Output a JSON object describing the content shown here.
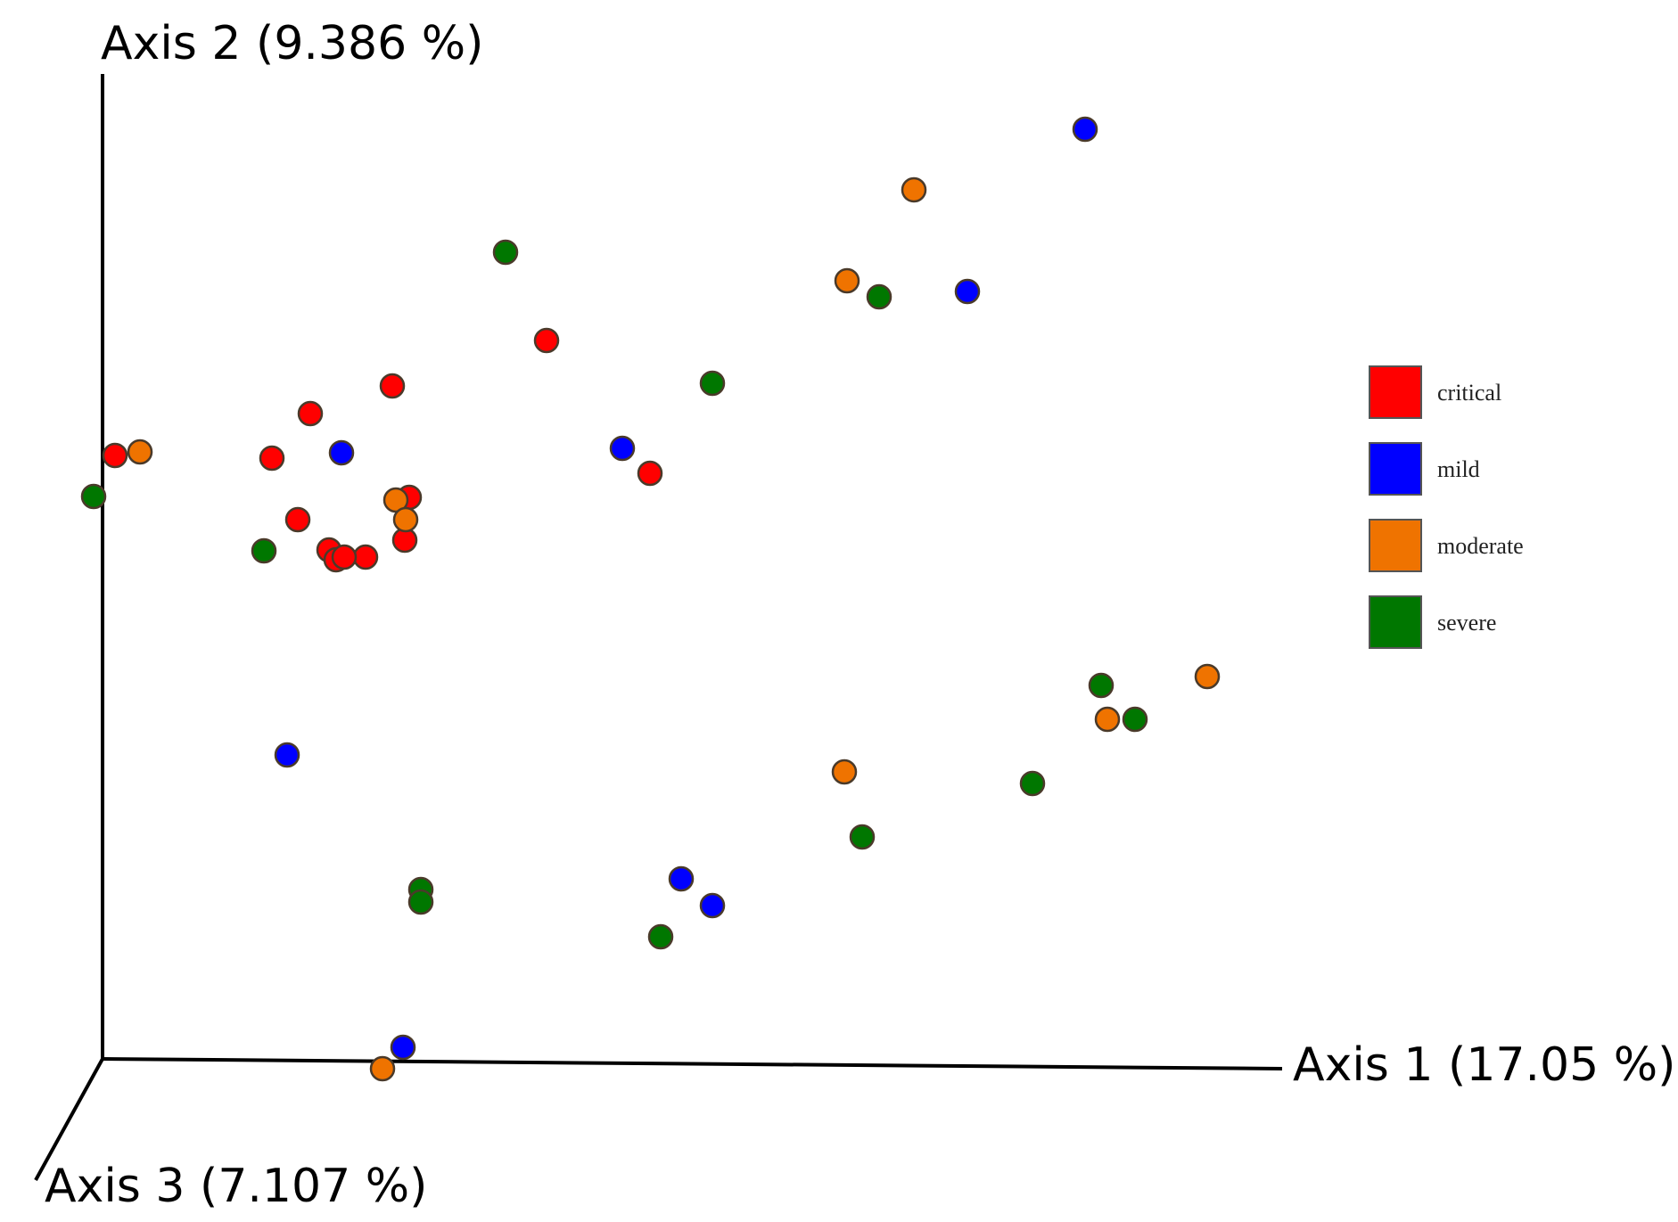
{
  "chart_data": {
    "type": "scatter",
    "title": "",
    "axes": {
      "x": "Axis 1 (17.05 %)",
      "y": "Axis 2 (9.386 %)",
      "z": "Axis 3 (7.107 %)"
    },
    "xlim": [
      0,
      1323
    ],
    "ylim": [
      0,
      1105
    ],
    "grid": false,
    "legend_position": "right",
    "series": [
      {
        "name": "critical",
        "color": "#ff0000",
        "points": [
          {
            "x": 14,
            "y": 677
          },
          {
            "x": 190,
            "y": 674
          },
          {
            "x": 233,
            "y": 724
          },
          {
            "x": 325,
            "y": 755
          },
          {
            "x": 344,
            "y": 630
          },
          {
            "x": 498,
            "y": 806
          },
          {
            "x": 614,
            "y": 657
          },
          {
            "x": 339,
            "y": 582
          },
          {
            "x": 219,
            "y": 605
          },
          {
            "x": 254,
            "y": 571
          },
          {
            "x": 295,
            "y": 563
          },
          {
            "x": 262,
            "y": 560
          },
          {
            "x": 271,
            "y": 563
          }
        ]
      },
      {
        "name": "mild",
        "color": "#0000ff",
        "points": [
          {
            "x": 1102,
            "y": 1043
          },
          {
            "x": 970,
            "y": 861
          },
          {
            "x": 583,
            "y": 685
          },
          {
            "x": 268,
            "y": 680
          },
          {
            "x": 207,
            "y": 341
          },
          {
            "x": 649,
            "y": 202
          },
          {
            "x": 684,
            "y": 172
          },
          {
            "x": 337,
            "y": 13
          }
        ]
      },
      {
        "name": "moderate",
        "color": "#ef7300",
        "points": [
          {
            "x": 910,
            "y": 975
          },
          {
            "x": 835,
            "y": 873
          },
          {
            "x": 42,
            "y": 681
          },
          {
            "x": 329,
            "y": 627
          },
          {
            "x": 340,
            "y": 605
          },
          {
            "x": 1239,
            "y": 429
          },
          {
            "x": 1127,
            "y": 381
          },
          {
            "x": 832,
            "y": 322
          },
          {
            "x": 314,
            "y": -11
          }
        ]
      },
      {
        "name": "severe",
        "color": "#007700",
        "points": [
          {
            "x": 452,
            "y": 905
          },
          {
            "x": 871,
            "y": 855
          },
          {
            "x": 684,
            "y": 758
          },
          {
            "x": -10,
            "y": 631
          },
          {
            "x": 181,
            "y": 570
          },
          {
            "x": 1120,
            "y": 419
          },
          {
            "x": 1158,
            "y": 381
          },
          {
            "x": 1043,
            "y": 309
          },
          {
            "x": 852,
            "y": 249
          },
          {
            "x": 357,
            "y": 190
          },
          {
            "x": 357,
            "y": 176
          },
          {
            "x": 626,
            "y": 137
          }
        ]
      }
    ],
    "legend": [
      "critical",
      "mild",
      "moderate",
      "severe"
    ]
  }
}
